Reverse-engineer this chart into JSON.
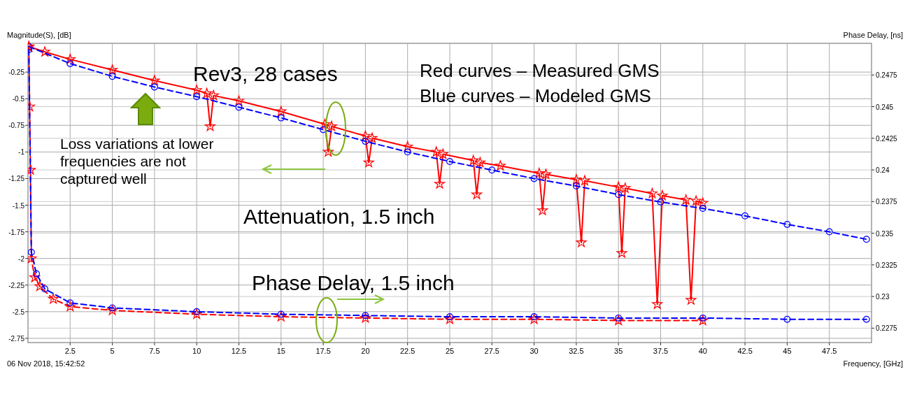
{
  "chart_data": {
    "type": "line",
    "xlabel": "Frequency, [GHz]",
    "ylabel": "Magnitude(S), [dB]",
    "y2label": "Phase Delay, [ns]",
    "xlim": [
      0,
      50
    ],
    "xticks": [
      2.5,
      5,
      7.5,
      10,
      12.5,
      15,
      17.5,
      20,
      22.5,
      25,
      27.5,
      30,
      32.5,
      35,
      37.5,
      40,
      42.5,
      45,
      47.5
    ],
    "ylim": [
      -2.79,
      0.02
    ],
    "yticks": [
      -0.25,
      -0.5,
      -0.75,
      -1,
      -1.25,
      -1.5,
      -1.75,
      -2,
      -2.25,
      -2.5,
      -2.75
    ],
    "y2lim": [
      0.22636,
      0.25
    ],
    "y2ticks": [
      0.2275,
      0.23,
      0.2325,
      0.235,
      0.2375,
      0.24,
      0.2425,
      0.245,
      0.2475
    ],
    "grid": true,
    "annotations": [
      "Rev3, 28 cases",
      "Red curves – Measured GMS",
      "Blue curves – Modeled GMS",
      "Loss variations at lower frequencies are not captured well",
      "Attenuation, 1.5 inch",
      "Phase Delay, 1.5 inch",
      "06 Nov 2018, 15:42:52"
    ],
    "series": [
      {
        "color": "#ff0000",
        "marker": "star",
        "line_style": "solid",
        "x": [
          0.05,
          1,
          2.5,
          5,
          7.5,
          10,
          10.6,
          10.8,
          11.0,
          12.5,
          15,
          17.6,
          17.8,
          18.0,
          20,
          20.2,
          20.4,
          22.5,
          24.2,
          24.4,
          24.6,
          26.4,
          26.6,
          26.8,
          28,
          30.3,
          30.5,
          30.7,
          32.5,
          32.8,
          33.0,
          35,
          35.2,
          35.4,
          37.0,
          37.3,
          37.6,
          39.0,
          39.3,
          39.6,
          40
        ],
        "values": [
          -0.01,
          -0.06,
          -0.13,
          -0.23,
          -0.33,
          -0.42,
          -0.45,
          -0.76,
          -0.47,
          -0.52,
          -0.62,
          -0.74,
          -1.0,
          -0.76,
          -0.85,
          -1.1,
          -0.87,
          -0.95,
          -1.0,
          -1.3,
          -1.02,
          -1.08,
          -1.4,
          -1.1,
          -1.13,
          -1.2,
          -1.55,
          -1.21,
          -1.26,
          -1.85,
          -1.27,
          -1.33,
          -1.95,
          -1.34,
          -1.39,
          -2.43,
          -1.41,
          -1.45,
          -2.39,
          -1.46,
          -1.48
        ]
      },
      {
        "color": "#0000ff",
        "marker": "circle",
        "line_style": "dashed",
        "x": [
          0.05,
          2.5,
          5,
          7.5,
          10,
          12.5,
          15,
          17.5,
          20,
          22.5,
          25,
          27.5,
          30,
          32.5,
          35,
          37.5,
          40,
          42.5,
          45,
          47.5,
          49.7
        ],
        "values": [
          -0.01,
          -0.17,
          -0.29,
          -0.39,
          -0.48,
          -0.58,
          -0.68,
          -0.79,
          -0.9,
          -1.0,
          -1.09,
          -1.17,
          -1.25,
          -1.32,
          -1.4,
          -1.47,
          -1.53,
          -1.6,
          -1.68,
          -1.75,
          -1.82
        ]
      },
      {
        "color": "#ff0000",
        "marker": "star",
        "line_style": "dashed",
        "axis": "y2",
        "x": [
          0.05,
          0.1,
          0.15,
          0.2,
          0.4,
          0.7,
          1.5,
          2.5,
          5,
          10,
          15,
          20,
          25,
          30,
          35,
          40
        ],
        "values": [
          0.2497,
          0.245,
          0.24,
          0.233,
          0.2315,
          0.2308,
          0.2298,
          0.2292,
          0.2289,
          0.2286,
          0.2284,
          0.2283,
          0.2282,
          0.2282,
          0.2281,
          0.2281
        ]
      },
      {
        "color": "#0000ff",
        "marker": "circle",
        "line_style": "dashed",
        "axis": "y2",
        "x": [
          0.05,
          0.2,
          0.5,
          1,
          2.5,
          5,
          10,
          15,
          20,
          25,
          30,
          35,
          40,
          45,
          49.7
        ],
        "values": [
          0.2495,
          0.2335,
          0.2318,
          0.2306,
          0.2295,
          0.2291,
          0.2288,
          0.2286,
          0.2285,
          0.2284,
          0.2284,
          0.2283,
          0.2283,
          0.2282,
          0.2282
        ]
      }
    ]
  }
}
